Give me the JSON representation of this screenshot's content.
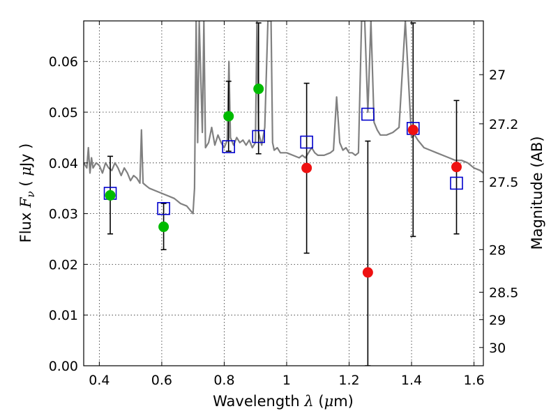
{
  "chart_data": {
    "type": "scatter",
    "xlabel": "Wavelength  λ (μm)",
    "ylabel": "Flux  Fν  ( μJy )",
    "y2label": "Magnitude (AB)",
    "xlim": [
      0.35,
      1.63
    ],
    "ylim": [
      0.0,
      0.068
    ],
    "grid": true,
    "x_ticks": [
      0.4,
      0.6,
      0.8,
      1.0,
      1.2,
      1.4,
      1.6
    ],
    "x_tick_labels": [
      "0.4",
      "0.6",
      "0.8",
      "1",
      "1.2",
      "1.4",
      "1.6"
    ],
    "y_ticks": [
      0.0,
      0.01,
      0.02,
      0.03,
      0.04,
      0.05,
      0.06
    ],
    "y_tick_labels": [
      "0.00",
      "0.01",
      "0.02",
      "0.03",
      "0.04",
      "0.05",
      "0.06"
    ],
    "y2_ticks": [
      {
        "flux": 0.0574,
        "label": "27"
      },
      {
        "flux": 0.0477,
        "label": "27.2"
      },
      {
        "flux": 0.0363,
        "label": "27.5"
      },
      {
        "flux": 0.0229,
        "label": "28"
      },
      {
        "flux": 0.0145,
        "label": "28.5"
      },
      {
        "flux": 0.0091,
        "label": "29"
      },
      {
        "flux": 0.0036,
        "label": "30"
      }
    ],
    "series": [
      {
        "kind": "line",
        "color": "#808080",
        "x": [
          0.35,
          0.36,
          0.365,
          0.37,
          0.375,
          0.38,
          0.39,
          0.4,
          0.41,
          0.42,
          0.43,
          0.44,
          0.45,
          0.46,
          0.47,
          0.48,
          0.49,
          0.5,
          0.51,
          0.52,
          0.53,
          0.535,
          0.54,
          0.55,
          0.56,
          0.58,
          0.6,
          0.62,
          0.64,
          0.66,
          0.68,
          0.7,
          0.705,
          0.71,
          0.715,
          0.72,
          0.73,
          0.735,
          0.74,
          0.75,
          0.76,
          0.77,
          0.78,
          0.79,
          0.8,
          0.81,
          0.815,
          0.82,
          0.83,
          0.84,
          0.85,
          0.86,
          0.87,
          0.88,
          0.89,
          0.9,
          0.905,
          0.91,
          0.92,
          0.93,
          0.94,
          0.95,
          0.955,
          0.96,
          0.97,
          0.98,
          1.0,
          1.02,
          1.04,
          1.05,
          1.06,
          1.07,
          1.08,
          1.09,
          1.1,
          1.12,
          1.14,
          1.15,
          1.16,
          1.17,
          1.18,
          1.19,
          1.2,
          1.21,
          1.22,
          1.23,
          1.24,
          1.25,
          1.26,
          1.27,
          1.28,
          1.29,
          1.3,
          1.32,
          1.34,
          1.36,
          1.38,
          1.4,
          1.41,
          1.42,
          1.44,
          1.46,
          1.48,
          1.5,
          1.52,
          1.54,
          1.56,
          1.58,
          1.6,
          1.62,
          1.63
        ],
        "y": [
          0.04,
          0.039,
          0.043,
          0.038,
          0.041,
          0.039,
          0.04,
          0.0395,
          0.038,
          0.04,
          0.039,
          0.0385,
          0.04,
          0.039,
          0.0375,
          0.039,
          0.038,
          0.0365,
          0.0375,
          0.037,
          0.036,
          0.0465,
          0.036,
          0.0355,
          0.035,
          0.0345,
          0.034,
          0.0335,
          0.033,
          0.032,
          0.0315,
          0.03,
          0.035,
          0.068,
          0.044,
          0.068,
          0.046,
          0.068,
          0.043,
          0.044,
          0.047,
          0.0435,
          0.0455,
          0.044,
          0.043,
          0.0445,
          0.06,
          0.045,
          0.0435,
          0.045,
          0.044,
          0.0445,
          0.0435,
          0.0445,
          0.043,
          0.044,
          0.068,
          0.046,
          0.0435,
          0.047,
          0.068,
          0.068,
          0.044,
          0.0425,
          0.043,
          0.042,
          0.042,
          0.0415,
          0.041,
          0.0415,
          0.041,
          0.042,
          0.043,
          0.042,
          0.0415,
          0.0415,
          0.042,
          0.0425,
          0.053,
          0.044,
          0.0425,
          0.043,
          0.042,
          0.042,
          0.0415,
          0.042,
          0.068,
          0.068,
          0.05,
          0.068,
          0.048,
          0.0465,
          0.0455,
          0.0455,
          0.046,
          0.047,
          0.068,
          0.045,
          0.0455,
          0.0445,
          0.043,
          0.0425,
          0.042,
          0.0415,
          0.041,
          0.0405,
          0.0405,
          0.04,
          0.039,
          0.0385,
          0.038
        ]
      },
      {
        "kind": "errorbar",
        "color": "#000000",
        "items": [
          {
            "x": 0.435,
            "low": 0.026,
            "high": 0.0413
          },
          {
            "x": 0.606,
            "low": 0.0229,
            "high": 0.032
          },
          {
            "x": 0.814,
            "low": 0.0423,
            "high": 0.0561
          },
          {
            "x": 0.91,
            "low": 0.0418,
            "high": 0.0676
          },
          {
            "x": 1.064,
            "low": 0.0222,
            "high": 0.0557
          },
          {
            "x": 1.26,
            "low": 0.0,
            "high": 0.0443
          },
          {
            "x": 1.405,
            "low": 0.0255,
            "high": 0.0676
          },
          {
            "x": 1.544,
            "low": 0.026,
            "high": 0.0523
          }
        ]
      },
      {
        "kind": "square",
        "color": "#0000cc",
        "points": [
          {
            "x": 0.435,
            "y": 0.034
          },
          {
            "x": 0.606,
            "y": 0.031
          },
          {
            "x": 0.814,
            "y": 0.0432
          },
          {
            "x": 0.91,
            "y": 0.0452
          },
          {
            "x": 1.064,
            "y": 0.0441
          },
          {
            "x": 1.26,
            "y": 0.0496
          },
          {
            "x": 1.405,
            "y": 0.0468
          },
          {
            "x": 1.544,
            "y": 0.036
          }
        ]
      },
      {
        "kind": "circle",
        "color": "#00bb00",
        "points": [
          {
            "x": 0.435,
            "y": 0.0336
          },
          {
            "x": 0.606,
            "y": 0.0274
          },
          {
            "x": 0.814,
            "y": 0.0492
          },
          {
            "x": 0.91,
            "y": 0.0546
          }
        ]
      },
      {
        "kind": "circle",
        "color": "#ee1111",
        "points": [
          {
            "x": 1.064,
            "y": 0.039
          },
          {
            "x": 1.26,
            "y": 0.0184
          },
          {
            "x": 1.405,
            "y": 0.0465
          },
          {
            "x": 1.544,
            "y": 0.0392
          }
        ]
      }
    ]
  }
}
